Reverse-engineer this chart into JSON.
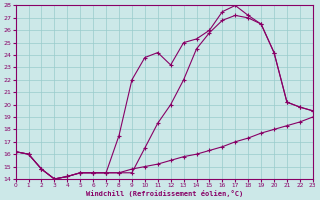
{
  "xlabel": "Windchill (Refroidissement éolien,°C)",
  "bg_color": "#cce8e8",
  "grid_color": "#99cccc",
  "line_color": "#880066",
  "xlim": [
    0,
    23
  ],
  "ylim": [
    14,
    28
  ],
  "yticks": [
    14,
    15,
    16,
    17,
    18,
    19,
    20,
    21,
    22,
    23,
    24,
    25,
    26,
    27,
    28
  ],
  "xticks": [
    0,
    1,
    2,
    3,
    4,
    5,
    6,
    7,
    8,
    9,
    10,
    11,
    12,
    13,
    14,
    15,
    16,
    17,
    18,
    19,
    20,
    21,
    22,
    23
  ],
  "curve1_x": [
    0,
    1,
    2,
    3,
    4,
    5,
    6,
    7,
    8,
    9,
    10,
    11,
    12,
    13,
    14,
    15,
    16,
    17,
    18,
    19,
    20,
    21,
    22,
    23
  ],
  "curve1_y": [
    16.2,
    16.0,
    14.8,
    14.0,
    14.2,
    14.5,
    14.5,
    14.5,
    17.5,
    22.0,
    23.8,
    24.2,
    23.2,
    25.0,
    25.3,
    26.0,
    27.5,
    28.0,
    27.2,
    26.5,
    24.2,
    20.2,
    19.8,
    19.5
  ],
  "curve2_x": [
    0,
    1,
    2,
    3,
    4,
    5,
    6,
    7,
    8,
    9,
    10,
    11,
    12,
    13,
    14,
    15,
    16,
    17,
    18,
    19,
    20,
    21,
    22,
    23
  ],
  "curve2_y": [
    16.2,
    16.0,
    14.8,
    14.0,
    14.2,
    14.5,
    14.5,
    14.5,
    14.5,
    14.5,
    16.5,
    18.5,
    20.0,
    22.0,
    24.5,
    25.8,
    26.8,
    27.2,
    27.0,
    26.5,
    24.2,
    20.2,
    19.8,
    19.5
  ],
  "curve3_x": [
    0,
    1,
    2,
    3,
    4,
    5,
    6,
    7,
    8,
    9,
    10,
    11,
    12,
    13,
    14,
    15,
    16,
    17,
    18,
    19,
    20,
    21,
    22,
    23
  ],
  "curve3_y": [
    16.2,
    16.0,
    14.8,
    14.0,
    14.2,
    14.5,
    14.5,
    14.5,
    14.5,
    14.8,
    15.0,
    15.2,
    15.5,
    15.8,
    16.0,
    16.3,
    16.6,
    17.0,
    17.3,
    17.7,
    18.0,
    18.3,
    18.6,
    19.0
  ]
}
